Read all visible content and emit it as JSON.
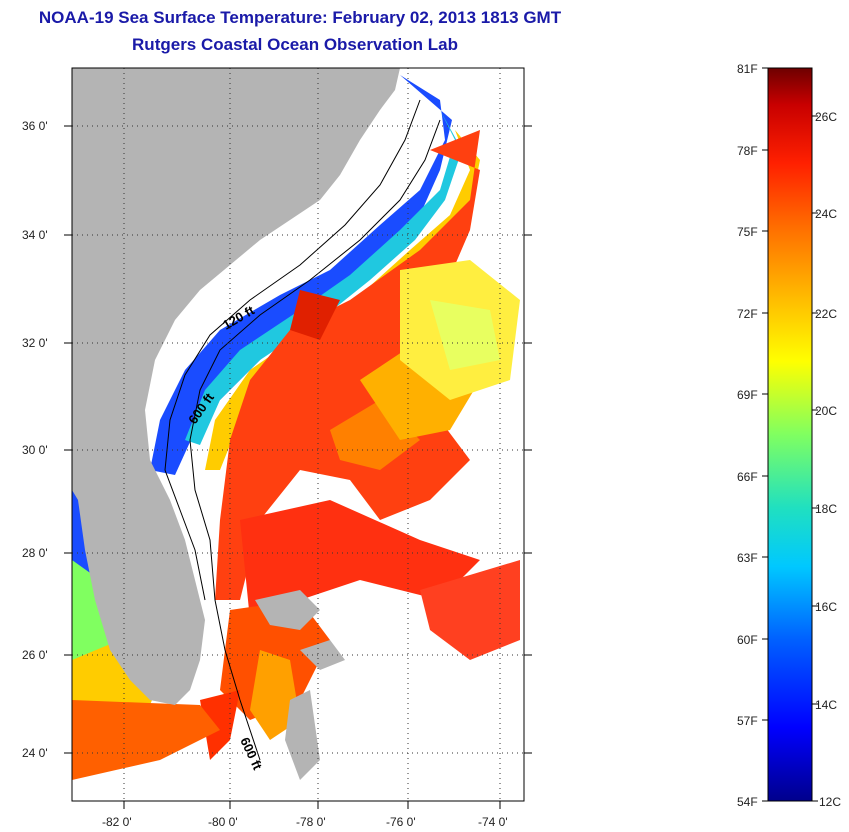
{
  "title": "NOAA-19 Sea Surface Temperature:  February 02, 2013 1813 GMT",
  "subtitle": "Rutgers Coastal Ocean Observation Lab",
  "map": {
    "lat_labels": [
      "36 0'",
      "34 0'",
      "32 0'",
      "30 0'",
      "28 0'",
      "26 0'",
      "24 0'"
    ],
    "lon_labels": [
      "-82 0'",
      "-80 0'",
      "-78 0'",
      "-76 0'",
      "-74 0'"
    ],
    "contour_labels": [
      "120 ft",
      "600 ft",
      "600 ft"
    ],
    "colors": {
      "land": "#b4b4b4",
      "no_data": "#ffffff",
      "grid": "#000000"
    }
  },
  "colorbar": {
    "fahrenheit_labels": [
      "81F",
      "78F",
      "75F",
      "72F",
      "69F",
      "66F",
      "63F",
      "60F",
      "57F",
      "54F"
    ],
    "celsius_labels": [
      "26C",
      "24C",
      "22C",
      "20C",
      "18C",
      "16C",
      "14C",
      "12C"
    ],
    "range_f": [
      54,
      81
    ],
    "colormap": [
      "#00008c",
      "#0000ff",
      "#0060ff",
      "#00c8ff",
      "#20e0c0",
      "#80ff60",
      "#ffff00",
      "#ffc000",
      "#ff7000",
      "#ff2000",
      "#c80000",
      "#6e0000"
    ]
  }
}
